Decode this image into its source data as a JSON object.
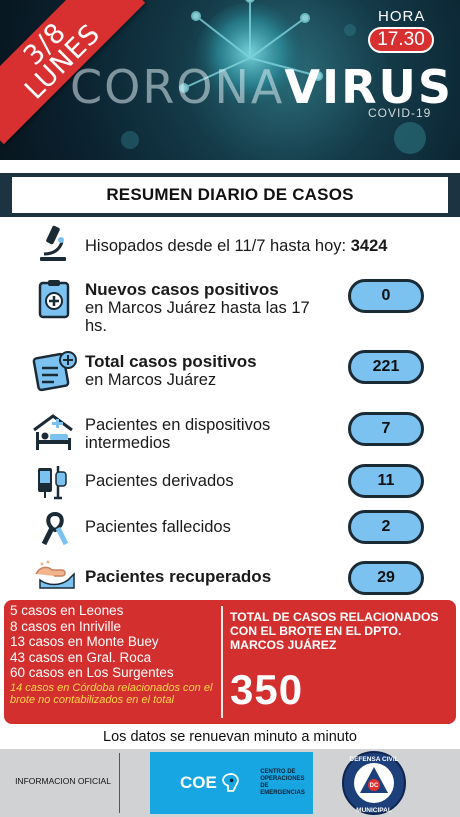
{
  "header": {
    "date": "3/8\nLUNES",
    "hora_label": "HORA",
    "hora_time": "17.30",
    "brand_light": "CORONA",
    "brand_bold": "VIRUS",
    "subtitle": "COVID-19"
  },
  "title": "RESUMEN DIARIO DE CASOS",
  "swabs": {
    "label": "Hisopados desde el 11/7 hasta hoy:",
    "value": "3424"
  },
  "stats": [
    {
      "bold": "Nuevos casos positivos",
      "text": "en Marcos Juárez hasta las 17 hs.",
      "value": "0"
    },
    {
      "bold": "Total casos positivos",
      "text": "en Marcos Juárez",
      "value": "221"
    },
    {
      "bold": "",
      "text": "Pacientes en dispositivos intermedios",
      "value": "7"
    },
    {
      "bold": "",
      "text": "Pacientes derivados",
      "value": "11"
    },
    {
      "bold": "",
      "text": "Pacientes fallecidos",
      "value": "2"
    },
    {
      "bold": "Pacientes recuperados",
      "text": "",
      "value": "29"
    }
  ],
  "icons": [
    "microscope-icon",
    "positive-report-icon",
    "total-report-icon",
    "hospital-bed-icon",
    "iv-drip-icon",
    "mourning-ribbon-icon",
    "recovered-hands-icon"
  ],
  "locations": [
    "5 casos en Leones",
    "8 casos en Inriville",
    "13 casos en Monte Buey",
    "43 casos en Gral. Roca",
    "60 casos en Los Surgentes"
  ],
  "locations_note": "14 casos en Córdoba relacionados con el brote no contabilizados en el total",
  "total": {
    "label": "TOTAL DE CASOS RELACIONADOS CON EL BROTE EN EL DPTO. MARCOS JUÁREZ",
    "value": "350"
  },
  "update_note": "Los datos se renuevan minuto a minuto",
  "footer": {
    "official": "INFORMACION OFICIAL",
    "coe": "COE",
    "coe_sub": "CENTRO DE OPERACIONES DE EMERGENCIAS",
    "seal_top": "DEFENSA CIVIL",
    "seal_bottom": "MUNICIPAL",
    "seal_center": "DC"
  },
  "colors": {
    "accent_red": "#d32f2f",
    "pill_blue": "#7cc2f0",
    "dark_navy": "#1c3342",
    "coe_blue": "#18a6e3"
  }
}
